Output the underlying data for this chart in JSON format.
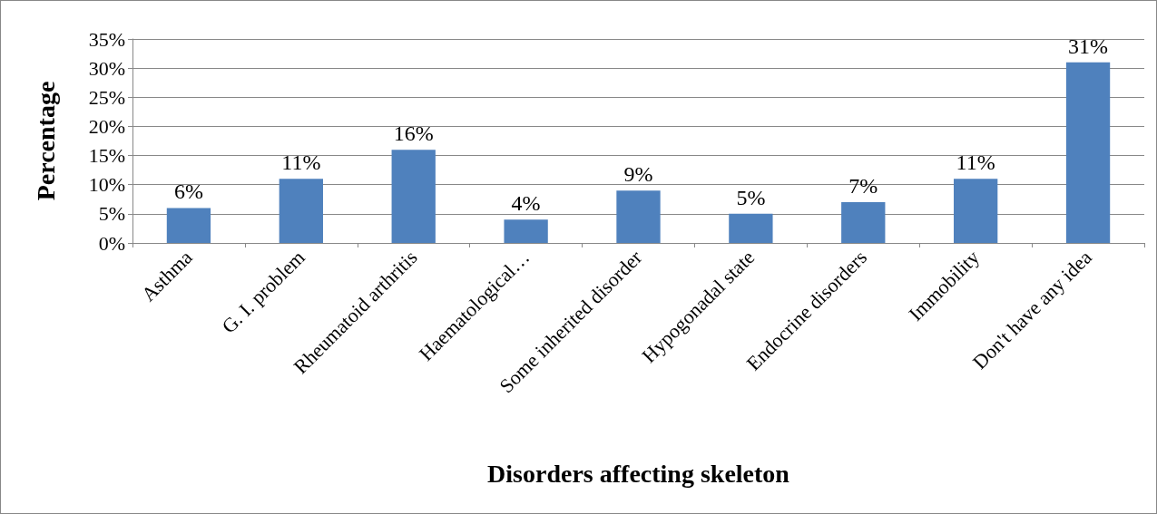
{
  "chart_data": {
    "type": "bar",
    "xlabel": "Disorders affecting skeleton",
    "ylabel": "Percentage",
    "categories": [
      "Asthma",
      "G. I. problem",
      "Rheumatoid arthritis",
      "Haematological…",
      "Some inherited disorder",
      "Hypogonadal state",
      "Endocrine disorders",
      "Immobility",
      "Don't have any idea"
    ],
    "values": [
      6,
      11,
      16,
      4,
      9,
      5,
      7,
      11,
      31
    ],
    "value_labels": [
      "6%",
      "11%",
      "16%",
      "4%",
      "9%",
      "5%",
      "7%",
      "11%",
      "31%"
    ],
    "color": "#4f81bd",
    "ylim": [
      0,
      35
    ],
    "yticks": [
      {
        "value": 0,
        "label": "0%"
      },
      {
        "value": 5,
        "label": "5%"
      },
      {
        "value": 10,
        "label": "10%"
      },
      {
        "value": 15,
        "label": "15%"
      },
      {
        "value": 20,
        "label": "20%"
      },
      {
        "value": 25,
        "label": "25%"
      },
      {
        "value": 30,
        "label": "30%"
      },
      {
        "value": 35,
        "label": "35%"
      }
    ],
    "grid": "y"
  }
}
